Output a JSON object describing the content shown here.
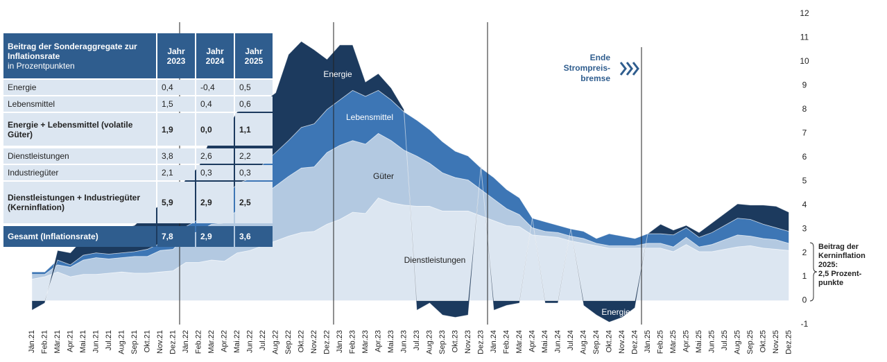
{
  "chart_data": {
    "type": "area",
    "stacked": true,
    "categories": [
      "Jän.21",
      "Feb.21",
      "Mär.21",
      "Apr.21",
      "Mai.21",
      "Jun.21",
      "Jul.21",
      "Aug.21",
      "Sep.21",
      "Okt.21",
      "Nov.21",
      "Dez.21",
      "Jän.22",
      "Feb.22",
      "Mär.22",
      "Apr.22",
      "Mai.22",
      "Jun.22",
      "Jul.22",
      "Aug.22",
      "Sep.22",
      "Okt.22",
      "Nov.22",
      "Dez.22",
      "Jän.23",
      "Feb.23",
      "Mär.23",
      "Apr.23",
      "Mai.23",
      "Jun.23",
      "Jul.23",
      "Aug.23",
      "Sep.23",
      "Okt.23",
      "Nov.23",
      "Dez.23",
      "Jän.24",
      "Feb.24",
      "Mär.24",
      "Apr.24",
      "Mai.24",
      "Jun.24",
      "Jul.24",
      "Aug.24",
      "Sep.24",
      "Okt.24",
      "Nov.24",
      "Dez.24",
      "Jän.25",
      "Feb.25",
      "Mär.25",
      "Apr.25",
      "Mai.25",
      "Jun.25",
      "Jul.25",
      "Aug.25",
      "Sep.25",
      "Okt.25",
      "Nov.25",
      "Dez.25"
    ],
    "series": [
      {
        "name": "Dienstleistungen",
        "color": "#dce6f1",
        "values": [
          0.9,
          1.0,
          1.2,
          1.0,
          1.1,
          1.1,
          1.15,
          1.2,
          1.15,
          1.15,
          1.2,
          1.25,
          1.6,
          1.6,
          1.7,
          1.65,
          2.0,
          2.1,
          2.3,
          2.5,
          2.7,
          2.85,
          2.9,
          3.2,
          3.4,
          3.7,
          3.65,
          4.3,
          4.1,
          4.0,
          3.95,
          3.95,
          3.75,
          3.75,
          3.75,
          3.55,
          3.35,
          3.15,
          3.1,
          2.75,
          2.7,
          2.65,
          2.5,
          2.4,
          2.3,
          2.2,
          2.2,
          2.2,
          2.2,
          2.2,
          2.05,
          2.35,
          2.05,
          2.05,
          2.15,
          2.25,
          2.3,
          2.2,
          2.15,
          2.1
        ]
      },
      {
        "name": "Güter",
        "color": "#b3c9e1",
        "values": [
          0.2,
          0.1,
          0.3,
          0.4,
          0.6,
          0.7,
          0.6,
          0.6,
          0.7,
          0.7,
          0.9,
          0.9,
          1.1,
          1.3,
          1.5,
          1.6,
          1.8,
          1.8,
          2.1,
          2.3,
          2.5,
          2.7,
          2.7,
          3.0,
          3.1,
          3.0,
          2.9,
          2.7,
          2.6,
          2.3,
          2.1,
          1.8,
          1.6,
          1.4,
          1.3,
          1.1,
          0.9,
          0.7,
          0.5,
          0.3,
          0.2,
          0.2,
          0.2,
          0.2,
          0.1,
          0.1,
          0.1,
          0.1,
          0.2,
          0.2,
          0.2,
          0.3,
          0.2,
          0.3,
          0.4,
          0.5,
          0.4,
          0.4,
          0.4,
          0.3
        ]
      },
      {
        "name": "Lebensmittel",
        "color": "#3d76b5",
        "values": [
          0.1,
          0.1,
          0.2,
          0.1,
          0.2,
          0.2,
          0.2,
          0.2,
          0.2,
          0.3,
          0.3,
          0.3,
          0.4,
          0.5,
          0.7,
          1.0,
          1.1,
          1.2,
          1.3,
          1.4,
          1.5,
          1.7,
          1.8,
          1.8,
          1.9,
          2.1,
          2.0,
          1.8,
          1.7,
          1.6,
          1.5,
          1.4,
          1.3,
          1.1,
          1.0,
          0.9,
          0.9,
          0.8,
          0.7,
          0.4,
          0.4,
          0.3,
          0.3,
          0.3,
          0.2,
          0.5,
          0.4,
          0.3,
          0.4,
          0.4,
          0.5,
          0.4,
          0.4,
          0.5,
          0.6,
          0.7,
          0.7,
          0.6,
          0.5,
          0.5
        ]
      },
      {
        "name": "Energie",
        "color": "#1c3a5e",
        "values": [
          -0.4,
          -0.1,
          0.4,
          0.5,
          0.7,
          0.8,
          0.9,
          1.0,
          1.1,
          1.5,
          1.6,
          1.7,
          2.0,
          2.2,
          3.0,
          2.8,
          3.0,
          2.9,
          2.6,
          2.5,
          3.6,
          3.6,
          3.1,
          2.1,
          2.3,
          1.9,
          0.6,
          0.7,
          0.5,
          0.1,
          -0.4,
          -0.1,
          -0.6,
          -0.7,
          -0.6,
          0.1,
          -0.4,
          -0.2,
          -0.1,
          0.0,
          -0.1,
          -0.1,
          0.0,
          -0.2,
          -0.6,
          -0.9,
          -0.7,
          -0.3,
          0.0,
          0.4,
          0.2,
          0.1,
          0.2,
          0.4,
          0.5,
          0.6,
          0.6,
          0.8,
          0.9,
          0.8
        ]
      }
    ],
    "ylim": [
      -1,
      12
    ],
    "yticks": [
      -1,
      0,
      1,
      2,
      3,
      4,
      5,
      6,
      7,
      8,
      9,
      10,
      11,
      12
    ],
    "annotations": [
      {
        "lines": [
          "Ende",
          "Strompreis-",
          "bremse"
        ]
      },
      {
        "lines": [
          "Beitrag der",
          "Kerninflation",
          "2025:",
          "2,5 Prozent-",
          "punkte"
        ]
      }
    ]
  },
  "table": {
    "title": "Beitrag der Sonderaggregate zur Inflationsrate",
    "subtitle": "in Prozentpunkten",
    "columns": [
      "Jahr 2023",
      "Jahr 2024",
      "Jahr 2025"
    ],
    "groups": [
      [
        {
          "label": "Energie",
          "values": [
            "0,4",
            "-0,4",
            "0,5"
          ]
        },
        {
          "label": "Lebensmittel",
          "values": [
            "1,5",
            "0,4",
            "0,6"
          ]
        },
        {
          "label": "Energie + Lebensmittel (volatile Güter)",
          "values": [
            "1,9",
            "0,0",
            "1,1"
          ]
        }
      ],
      [
        {
          "label": "Dienstleistungen",
          "values": [
            "3,8",
            "2,6",
            "2,2"
          ]
        },
        {
          "label": "Industriegüter",
          "values": [
            "2,1",
            "0,3",
            "0,3"
          ]
        },
        {
          "label": "Dienstleistungen + Industriegüter (Kerninflation)",
          "values": [
            "5,9",
            "2,9",
            "2,5"
          ]
        }
      ],
      [
        {
          "label": "Gesamt (Inflationsrate)",
          "values": [
            "7,8",
            "2,9",
            "3,6"
          ]
        }
      ]
    ]
  }
}
